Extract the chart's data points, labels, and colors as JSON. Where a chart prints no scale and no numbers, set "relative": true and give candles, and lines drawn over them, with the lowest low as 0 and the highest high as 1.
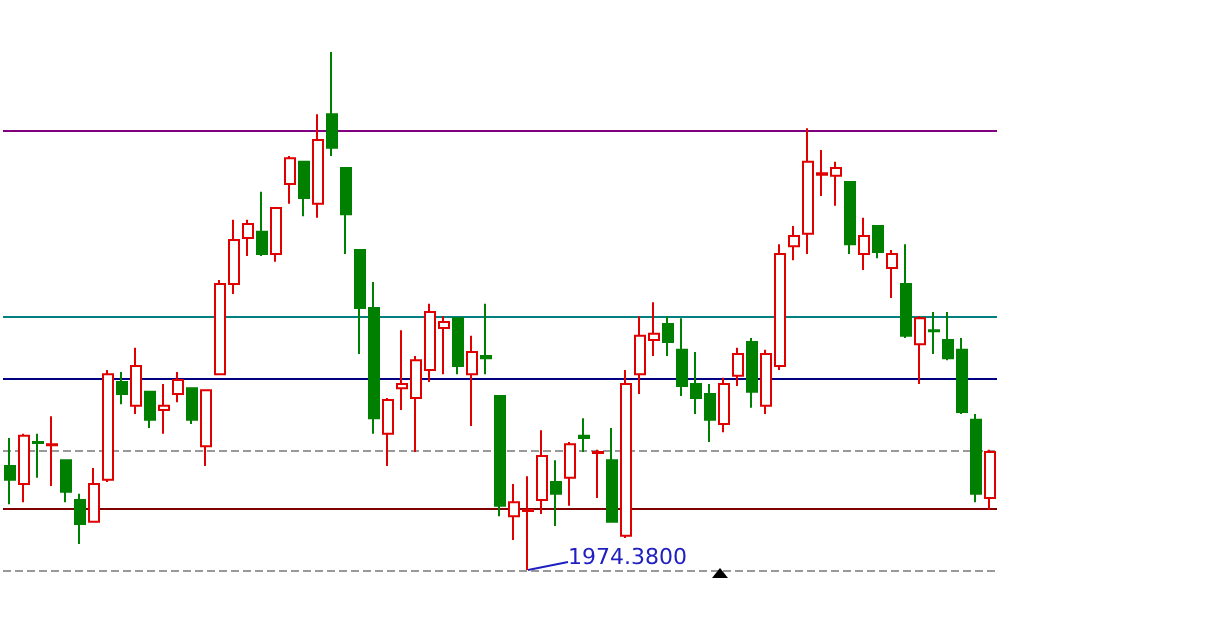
{
  "chart_data": {
    "type": "candlestick",
    "relative": true,
    "grid": false,
    "categories": [
      null,
      null,
      null,
      null,
      null,
      null,
      null,
      null,
      null,
      null,
      null,
      null,
      null,
      null,
      null,
      null,
      null,
      null,
      null,
      null,
      null,
      null,
      null,
      null,
      null,
      null,
      null,
      null,
      null,
      null,
      null,
      null,
      null,
      null,
      null,
      null,
      null,
      null,
      null,
      null,
      null,
      null,
      null,
      null,
      null,
      null,
      null,
      null,
      null,
      null,
      null,
      null,
      null,
      null,
      null,
      null,
      null,
      null,
      null,
      null,
      null,
      null,
      null,
      null,
      null,
      null,
      null,
      null,
      null,
      null,
      null
    ],
    "ohlc": [
      [
        0.201,
        0.255,
        0.127,
        0.174
      ],
      [
        0.166,
        0.263,
        0.131,
        0.259
      ],
      [
        0.247,
        0.263,
        0.178,
        0.245
      ],
      [
        0.241,
        0.297,
        0.162,
        0.243
      ],
      [
        0.212,
        0.212,
        0.131,
        0.151
      ],
      [
        0.135,
        0.147,
        0.05,
        0.089
      ],
      [
        0.093,
        0.197,
        0.093,
        0.166
      ],
      [
        0.174,
        0.386,
        0.17,
        0.378
      ],
      [
        0.363,
        0.382,
        0.32,
        0.34
      ],
      [
        0.317,
        0.429,
        0.301,
        0.394
      ],
      [
        0.344,
        0.344,
        0.274,
        0.29
      ],
      [
        0.309,
        0.359,
        0.263,
        0.317
      ],
      [
        0.34,
        0.382,
        0.324,
        0.367
      ],
      [
        0.351,
        0.351,
        0.282,
        0.29
      ],
      [
        0.239,
        0.347,
        0.201,
        0.347
      ],
      [
        0.378,
        0.56,
        0.378,
        0.552
      ],
      [
        0.552,
        0.676,
        0.533,
        0.637
      ],
      [
        0.641,
        0.676,
        0.606,
        0.668
      ],
      [
        0.653,
        0.73,
        0.606,
        0.61
      ],
      [
        0.61,
        0.699,
        0.595,
        0.699
      ],
      [
        0.745,
        0.799,
        0.707,
        0.795
      ],
      [
        0.788,
        0.788,
        0.683,
        0.718
      ],
      [
        0.707,
        0.88,
        0.68,
        0.83
      ],
      [
        0.88,
        1,
        0.799,
        0.815
      ],
      [
        0.776,
        0.776,
        0.61,
        0.687
      ],
      [
        0.618,
        0.618,
        0.417,
        0.506
      ],
      [
        0.506,
        0.556,
        0.263,
        0.293
      ],
      [
        0.263,
        0.332,
        0.201,
        0.328
      ],
      [
        0.351,
        0.463,
        0.309,
        0.359
      ],
      [
        0.332,
        0.413,
        0.228,
        0.405
      ],
      [
        0.386,
        0.514,
        0.363,
        0.498
      ],
      [
        0.467,
        0.49,
        0.378,
        0.479
      ],
      [
        0.486,
        0.486,
        0.378,
        0.394
      ],
      [
        0.378,
        0.452,
        0.278,
        0.421
      ],
      [
        0.413,
        0.514,
        0.378,
        0.409
      ],
      [
        0.336,
        0.336,
        0.104,
        0.124
      ],
      [
        0.104,
        0.166,
        0.058,
        0.131
      ],
      [
        0.114,
        0.181,
        0,
        0.116
      ],
      [
        0.135,
        0.27,
        0.108,
        0.22
      ],
      [
        0.17,
        0.212,
        0.085,
        0.147
      ],
      [
        0.178,
        0.247,
        0.124,
        0.243
      ],
      [
        0.259,
        0.293,
        0.228,
        0.255
      ],
      [
        0.226,
        0.232,
        0.139,
        0.228
      ],
      [
        0.212,
        0.274,
        0.093,
        0.093
      ],
      [
        0.066,
        0.386,
        0.062,
        0.359
      ],
      [
        0.378,
        0.49,
        0.34,
        0.452
      ],
      [
        0.444,
        0.517,
        0.413,
        0.456
      ],
      [
        0.475,
        0.49,
        0.413,
        0.44
      ],
      [
        0.425,
        0.486,
        0.336,
        0.355
      ],
      [
        0.359,
        0.421,
        0.301,
        0.332
      ],
      [
        0.34,
        0.359,
        0.247,
        0.29
      ],
      [
        0.282,
        0.371,
        0.266,
        0.359
      ],
      [
        0.375,
        0.429,
        0.355,
        0.417
      ],
      [
        0.44,
        0.448,
        0.313,
        0.344
      ],
      [
        0.317,
        0.425,
        0.301,
        0.417
      ],
      [
        0.394,
        0.629,
        0.386,
        0.61
      ],
      [
        0.625,
        0.664,
        0.598,
        0.645
      ],
      [
        0.649,
        0.853,
        0.61,
        0.788
      ],
      [
        0.763,
        0.811,
        0.722,
        0.766
      ],
      [
        0.761,
        0.788,
        0.703,
        0.776
      ],
      [
        0.749,
        0.749,
        0.61,
        0.629
      ],
      [
        0.61,
        0.68,
        0.579,
        0.645
      ],
      [
        0.664,
        0.664,
        0.602,
        0.614
      ],
      [
        0.583,
        0.618,
        0.525,
        0.61
      ],
      [
        0.552,
        0.629,
        0.448,
        0.452
      ],
      [
        0.436,
        0.49,
        0.359,
        0.486
      ],
      [
        0.463,
        0.498,
        0.417,
        0.461
      ],
      [
        0.444,
        0.498,
        0.405,
        0.409
      ],
      [
        0.425,
        0.448,
        0.301,
        0.305
      ],
      [
        0.29,
        0.301,
        0.131,
        0.147
      ],
      [
        0.139,
        0.232,
        0.116,
        0.228
      ]
    ],
    "colors": [
      "#008000",
      "#e00000",
      "#008000",
      "#e00000",
      "#008000",
      "#008000",
      "#e00000",
      "#e00000",
      "#008000",
      "#e00000",
      "#008000",
      "#e00000",
      "#e00000",
      "#008000",
      "#e00000",
      "#e00000",
      "#e00000",
      "#e00000",
      "#008000",
      "#e00000",
      "#e00000",
      "#008000",
      "#e00000",
      "#008000",
      "#008000",
      "#008000",
      "#008000",
      "#e00000",
      "#e00000",
      "#e00000",
      "#e00000",
      "#e00000",
      "#008000",
      "#e00000",
      "#008000",
      "#008000",
      "#e00000",
      "#e00000",
      "#e00000",
      "#008000",
      "#e00000",
      "#008000",
      "#e00000",
      "#008000",
      "#e00000",
      "#e00000",
      "#e00000",
      "#008000",
      "#008000",
      "#008000",
      "#008000",
      "#e00000",
      "#e00000",
      "#008000",
      "#e00000",
      "#e00000",
      "#e00000",
      "#e00000",
      "#e00000",
      "#e00000",
      "#008000",
      "#e00000",
      "#008000",
      "#e00000",
      "#008000",
      "#e00000",
      "#008000",
      "#008000",
      "#008000",
      "#008000",
      "#e00000"
    ],
    "ref_lines": [
      {
        "axis": "y",
        "value": 0.853,
        "color": "#800080"
      },
      {
        "axis": "y",
        "value": 0.49,
        "color": "#008080"
      },
      {
        "axis": "y",
        "value": 0.367,
        "color": "#000080"
      },
      {
        "axis": "y",
        "value": 0.228,
        "color": "#999999",
        "line_style": "dashed"
      },
      {
        "axis": "y",
        "value": 0.12,
        "color": "#800000"
      },
      {
        "axis": "y",
        "value": 0,
        "color": "#999999",
        "line_style": "dashed"
      }
    ],
    "annotations": [
      "1974.3800"
    ]
  }
}
